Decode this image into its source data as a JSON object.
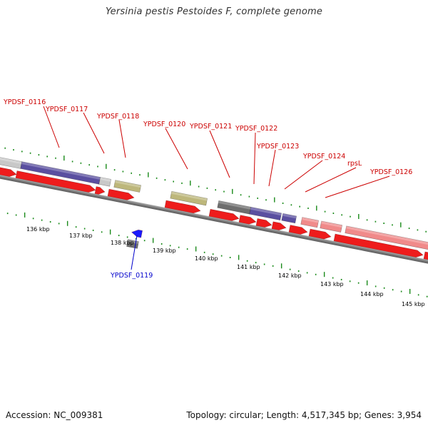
{
  "title": "Yersinia pestis Pestoides F, complete genome",
  "footer": {
    "accession": "Accession: NC_009381",
    "summary": "Topology: circular; Length: 4,517,345 bp; Genes: 3,954"
  },
  "colors": {
    "cds": "#ee1c1c",
    "gene_blue": "#5a4fa0",
    "gene_gray": "#6e6e6e",
    "gene_light_gray": "#c8c8c8",
    "gene_khaki": "#bdb77b",
    "gene_pink": "#f08a8a",
    "minus_strand_cds": "#1a1aff",
    "label_red": "#cc0000",
    "label_blue": "#0000cc",
    "tick_green": "#1a8a1a",
    "backbone": "#8a8a8a"
  },
  "scale_labels": [
    "136 kbp",
    "137 kbp",
    "138 kbp",
    "139 kbp",
    "140 kbp",
    "141 kbp",
    "142 kbp",
    "143 kbp",
    "144 kbp",
    "145 kbp"
  ],
  "gene_labels": [
    {
      "text": "YPDSF_0116",
      "strand": "plus"
    },
    {
      "text": "YPDSF_0117",
      "strand": "plus"
    },
    {
      "text": "YPDSF_0118",
      "strand": "plus"
    },
    {
      "text": "YPDSF_0119",
      "strand": "minus"
    },
    {
      "text": "YPDSF_0120",
      "strand": "plus"
    },
    {
      "text": "YPDSF_0121",
      "strand": "plus"
    },
    {
      "text": "YPDSF_0122",
      "strand": "plus"
    },
    {
      "text": "YPDSF_0123",
      "strand": "plus"
    },
    {
      "text": "YPDSF_0124",
      "strand": "plus"
    },
    {
      "text": "rpsL",
      "strand": "plus"
    },
    {
      "text": "YPDSF_0126",
      "strand": "plus"
    }
  ]
}
